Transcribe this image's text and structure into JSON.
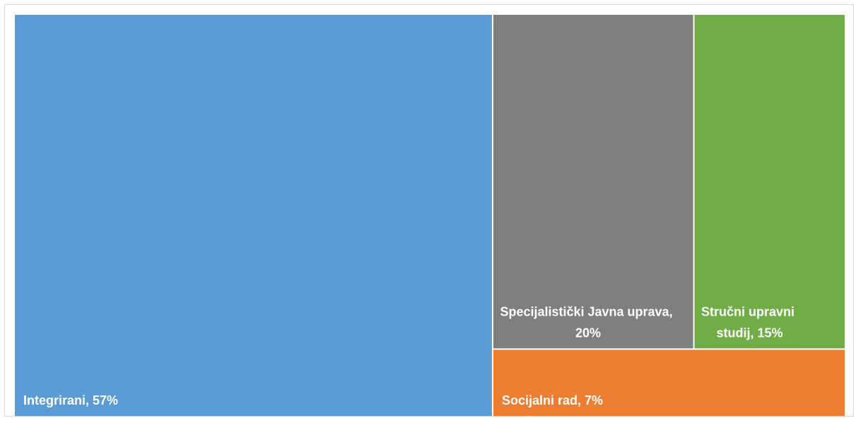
{
  "chart_data": {
    "type": "treemap",
    "values": [
      57,
      20,
      15,
      7
    ],
    "value_labels": [
      "Integrirani, 57%",
      "Specijalistički Javna uprava, 20%",
      "Stručni upravni studij, 15%",
      "Socijalni rad, 7%"
    ],
    "colors": [
      "#5b9bd5",
      "#7f7f7f",
      "#70ad47",
      "#ed7d31"
    ]
  }
}
